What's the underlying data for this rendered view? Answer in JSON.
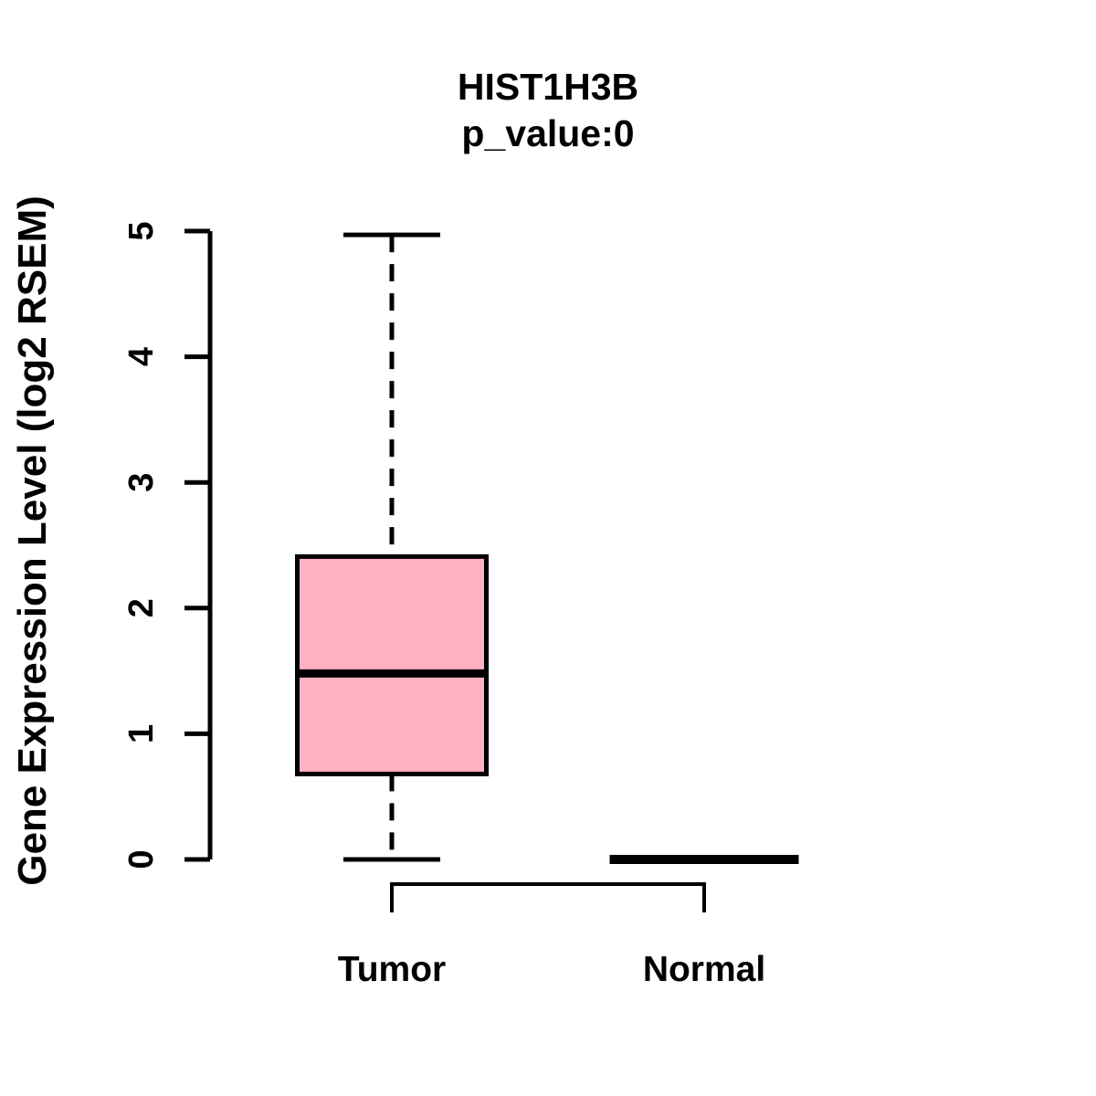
{
  "title": {
    "line1": "HIST1H3B",
    "line2": "p_value:0"
  },
  "colors": {
    "box_fill": "#FFB1C1",
    "line": "#000000",
    "background": "#FFFFFF"
  },
  "chart_data": {
    "type": "boxplot",
    "title": "HIST1H3B",
    "subtitle": "p_value:0",
    "xlabel": "",
    "ylabel": "Gene Expression Level (log2 RSEM)",
    "ylim": [
      0,
      5
    ],
    "yticks": [
      0,
      1,
      2,
      3,
      4,
      5
    ],
    "grid": false,
    "legend": false,
    "categories": [
      "Tumor",
      "Normal"
    ],
    "series": [
      {
        "name": "Tumor",
        "lower_whisker": 0,
        "q1": 0.68,
        "median": 1.48,
        "q3": 2.41,
        "upper_whisker": 4.97,
        "fill": "#FFB1C1"
      },
      {
        "name": "Normal",
        "lower_whisker": 0,
        "q1": 0,
        "median": 0,
        "q3": 0,
        "upper_whisker": 0,
        "fill": "#FFB1C1"
      }
    ]
  }
}
